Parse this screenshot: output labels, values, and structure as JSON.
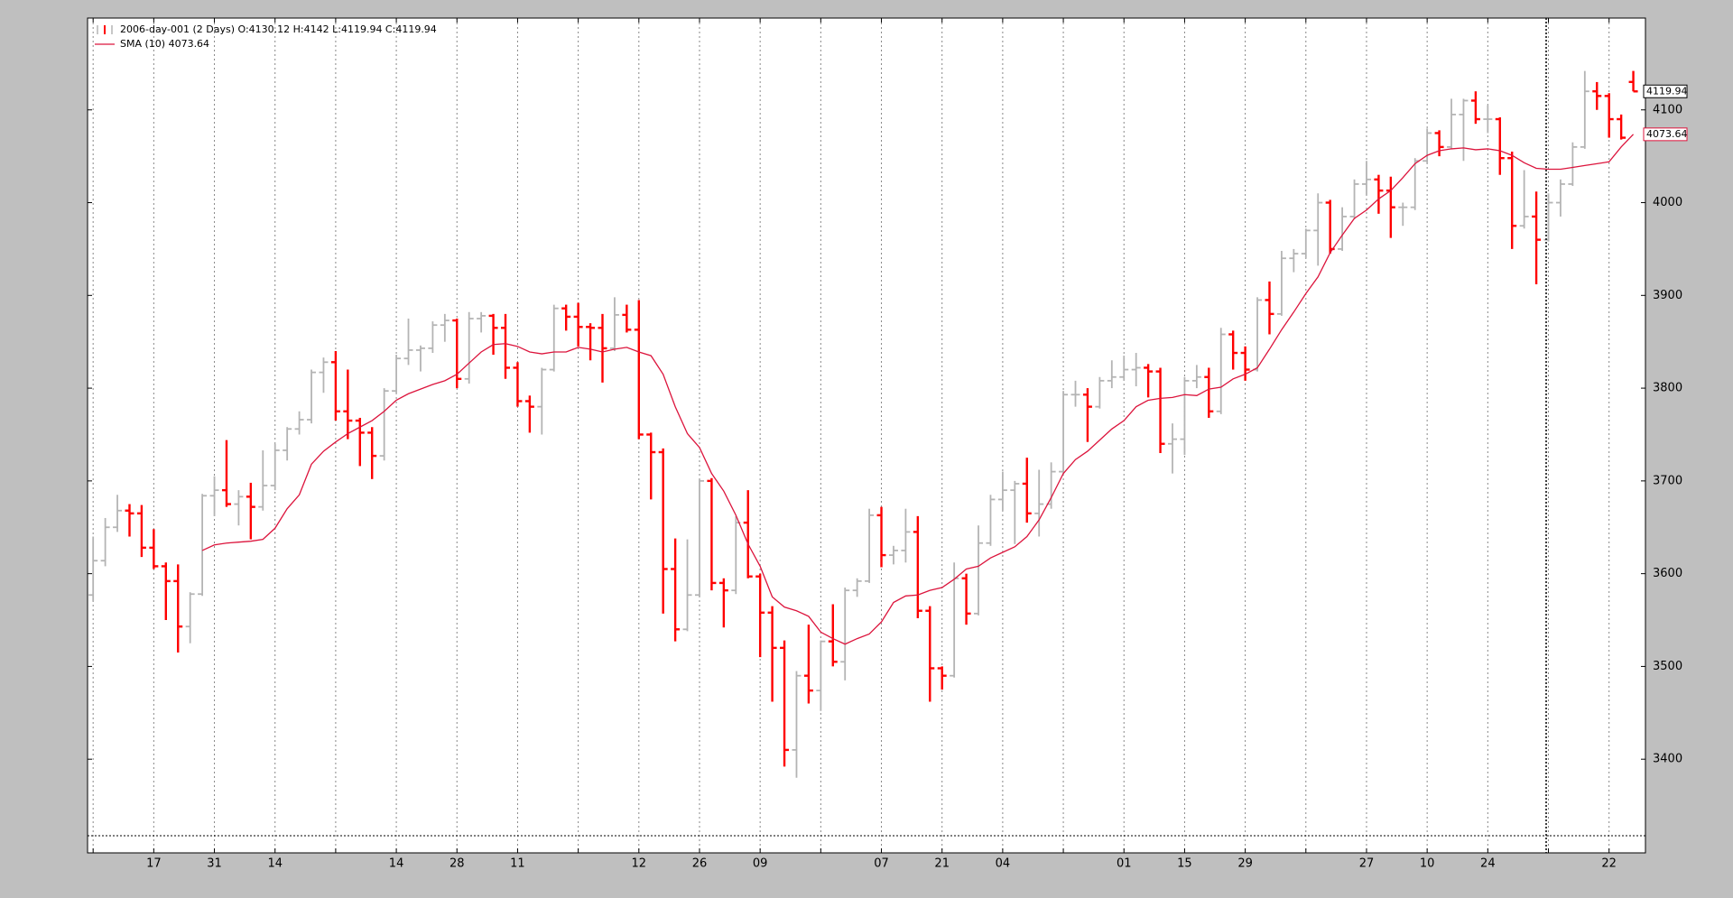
{
  "chart_data": {
    "type": "ohlc",
    "legend": "upper left",
    "grid": true,
    "xlim": [
      -0.46,
      128
    ],
    "ylim": [
      3299,
      4199
    ],
    "yticks": [
      3400,
      3500,
      3600,
      3700,
      3800,
      3900,
      4000,
      4100
    ],
    "xgrid": [
      0,
      5,
      10,
      15,
      20,
      25,
      30,
      35,
      40,
      45,
      50,
      55,
      60,
      65,
      70,
      75,
      80,
      85,
      90,
      95,
      100,
      105,
      110,
      115,
      120,
      125
    ],
    "xticks": [
      {
        "value": 5,
        "label": "17"
      },
      {
        "value": 10,
        "label": "31"
      },
      {
        "value": 15,
        "label": "14"
      },
      {
        "value": 25,
        "label": "14"
      },
      {
        "value": 30,
        "label": "28"
      },
      {
        "value": 35,
        "label": "11"
      },
      {
        "value": 45,
        "label": "12"
      },
      {
        "value": 50,
        "label": "26"
      },
      {
        "value": 55,
        "label": "09"
      },
      {
        "value": 65,
        "label": "07"
      },
      {
        "value": 70,
        "label": "21"
      },
      {
        "value": 75,
        "label": "04"
      },
      {
        "value": 85,
        "label": "01"
      },
      {
        "value": 90,
        "label": "15"
      },
      {
        "value": 95,
        "label": "29"
      },
      {
        "value": 105,
        "label": "27"
      },
      {
        "value": 110,
        "label": "10"
      },
      {
        "value": 115,
        "label": "24"
      },
      {
        "value": 125,
        "label": "22"
      }
    ],
    "series": [
      {
        "name": "2006-day-001 (2 Days) O:4130.12 H:4142 L:4119.94 C:4119.94",
        "type": "ohlc",
        "up_color": "#b4b4b4",
        "down_color": "#ff0000",
        "open": [
          3577,
          3614,
          3650,
          3668,
          3665,
          3628,
          3608,
          3592,
          3543,
          3578,
          3684,
          3690,
          3675,
          3683,
          3672,
          3695,
          3733,
          3756,
          3766,
          3817,
          3828,
          3775,
          3765,
          3752,
          3727,
          3797,
          3832,
          3841,
          3843,
          3868,
          3873,
          3810,
          3875,
          3878,
          3865,
          3822,
          3786,
          3780,
          3820,
          3886,
          3877,
          3866,
          3865,
          3843,
          3879,
          3863,
          3750,
          3731,
          3605,
          3540,
          3577,
          3700,
          3590,
          3582,
          3655,
          3597,
          3558,
          3520,
          3410,
          3490,
          3474,
          3527,
          3505,
          3582,
          3592,
          3663,
          3620,
          3625,
          3645,
          3560,
          3498,
          3490,
          3595,
          3557,
          3633,
          3680,
          3690,
          3697,
          3665,
          3675,
          3710,
          3793,
          3793,
          3780,
          3808,
          3812,
          3820,
          3822,
          3818,
          3740,
          3745,
          3808,
          3812,
          3775,
          3858,
          3838,
          3820,
          3895,
          3880,
          3940,
          3945,
          3970,
          4000,
          3950,
          3985,
          4020,
          4025,
          4013,
          3995,
          3995,
          4045,
          4075,
          4060,
          4095,
          4110,
          4090,
          4090,
          4048,
          3975,
          3985,
          3960,
          4000,
          4020,
          4060,
          4120,
          4115,
          4090,
          4130.12
        ],
        "high": [
          3640,
          3660,
          3685,
          3675,
          3674,
          3648,
          3612,
          3610,
          3580,
          3686,
          3705,
          3744,
          3690,
          3698,
          3733,
          3740,
          3758,
          3775,
          3820,
          3833,
          3840,
          3820,
          3768,
          3758,
          3800,
          3836,
          3875,
          3846,
          3872,
          3880,
          3875,
          3882,
          3882,
          3880,
          3880,
          3828,
          3792,
          3822,
          3890,
          3890,
          3892,
          3870,
          3880,
          3898,
          3890,
          3895,
          3752,
          3735,
          3638,
          3637,
          3702,
          3703,
          3595,
          3662,
          3690,
          3600,
          3565,
          3528,
          3495,
          3545,
          3528,
          3567,
          3585,
          3595,
          3670,
          3672,
          3630,
          3670,
          3662,
          3565,
          3500,
          3612,
          3600,
          3652,
          3685,
          3710,
          3700,
          3725,
          3712,
          3720,
          3797,
          3808,
          3800,
          3812,
          3830,
          3835,
          3838,
          3826,
          3822,
          3762,
          3812,
          3825,
          3822,
          3865,
          3862,
          3845,
          3898,
          3915,
          3948,
          3950,
          3972,
          4010,
          4003,
          3995,
          4025,
          4045,
          4030,
          4028,
          4000,
          4048,
          4080,
          4078,
          4112,
          4112,
          4120,
          4105,
          4092,
          4055,
          4035,
          4012,
          4010,
          4025,
          4065,
          4142,
          4130,
          4118,
          4095,
          4142
        ],
        "low": [
          3570,
          3608,
          3645,
          3640,
          3618,
          3605,
          3550,
          3515,
          3525,
          3576,
          3662,
          3672,
          3652,
          3637,
          3668,
          3690,
          3722,
          3750,
          3762,
          3795,
          3765,
          3745,
          3716,
          3702,
          3722,
          3795,
          3825,
          3818,
          3838,
          3850,
          3800,
          3805,
          3860,
          3836,
          3810,
          3780,
          3752,
          3750,
          3818,
          3862,
          3845,
          3830,
          3806,
          3840,
          3860,
          3745,
          3680,
          3557,
          3527,
          3538,
          3575,
          3582,
          3542,
          3578,
          3595,
          3510,
          3462,
          3392,
          3380,
          3460,
          3452,
          3500,
          3485,
          3575,
          3590,
          3607,
          3610,
          3612,
          3552,
          3462,
          3475,
          3488,
          3545,
          3555,
          3630,
          3668,
          3632,
          3655,
          3640,
          3670,
          3708,
          3780,
          3742,
          3778,
          3800,
          3808,
          3802,
          3790,
          3730,
          3708,
          3728,
          3800,
          3768,
          3772,
          3820,
          3808,
          3818,
          3858,
          3878,
          3925,
          3940,
          3932,
          3945,
          3948,
          3982,
          4008,
          3988,
          3962,
          3975,
          3992,
          4042,
          4050,
          4058,
          4045,
          4085,
          4075,
          4030,
          3950,
          3972,
          3912,
          3958,
          3985,
          4018,
          4058,
          4100,
          4070,
          4068,
          4119.94
        ],
        "close": [
          3614,
          3650,
          3668,
          3665,
          3628,
          3608,
          3592,
          3543,
          3578,
          3684,
          3690,
          3675,
          3683,
          3672,
          3695,
          3733,
          3756,
          3766,
          3817,
          3828,
          3775,
          3765,
          3752,
          3727,
          3797,
          3832,
          3841,
          3843,
          3868,
          3873,
          3810,
          3875,
          3878,
          3865,
          3822,
          3786,
          3780,
          3820,
          3886,
          3877,
          3866,
          3865,
          3843,
          3879,
          3863,
          3750,
          3731,
          3605,
          3540,
          3577,
          3700,
          3590,
          3582,
          3655,
          3597,
          3558,
          3520,
          3410,
          3490,
          3474,
          3527,
          3505,
          3582,
          3592,
          3663,
          3620,
          3625,
          3645,
          3560,
          3498,
          3490,
          3595,
          3557,
          3633,
          3680,
          3690,
          3697,
          3665,
          3675,
          3710,
          3793,
          3793,
          3780,
          3808,
          3812,
          3820,
          3822,
          3818,
          3740,
          3745,
          3808,
          3812,
          3775,
          3858,
          3838,
          3820,
          3895,
          3880,
          3940,
          3945,
          3970,
          4000,
          3950,
          3985,
          4020,
          4025,
          4013,
          3995,
          3995,
          4045,
          4075,
          4060,
          4095,
          4110,
          4090,
          4090,
          4048,
          3975,
          3985,
          3960,
          4000,
          4020,
          4060,
          4120,
          4115,
          4090,
          4070,
          4119.94
        ]
      },
      {
        "name": "SMA (10) 4073.64",
        "type": "line",
        "color": "#dc143c",
        "values": [
          null,
          null,
          null,
          null,
          null,
          null,
          null,
          null,
          null,
          3625,
          3631,
          3633,
          3634,
          3635,
          3637,
          3649,
          3670,
          3685,
          3718,
          3732,
          3742,
          3751,
          3758,
          3765,
          3775,
          3787,
          3794,
          3799,
          3804,
          3808,
          3815,
          3827,
          3839,
          3847,
          3848,
          3845,
          3839,
          3837,
          3839,
          3839,
          3844,
          3842,
          3839,
          3842,
          3844,
          3839,
          3835,
          3815,
          3780,
          3751,
          3736,
          3708,
          3689,
          3663,
          3632,
          3608,
          3575,
          3564,
          3560,
          3554,
          3537,
          3530,
          3524,
          3530,
          3535,
          3548,
          3569,
          3576,
          3577,
          3582,
          3585,
          3594,
          3605,
          3608,
          3617,
          3623,
          3629,
          3640,
          3658,
          3682,
          3708,
          3723,
          3732,
          3744,
          3756,
          3765,
          3780,
          3787,
          3789,
          3790,
          3793,
          3792,
          3799,
          3801,
          3810,
          3815,
          3822,
          3842,
          3863,
          3882,
          3902,
          3920,
          3946,
          3965,
          3983,
          3992,
          4004,
          4013,
          4027,
          4042,
          4051,
          4056,
          4058,
          4059,
          4057,
          4058,
          4056,
          4051,
          4043,
          4037,
          4036,
          4036,
          4038,
          4040,
          4042,
          4044,
          4060,
          4073.64
        ]
      }
    ]
  }
}
